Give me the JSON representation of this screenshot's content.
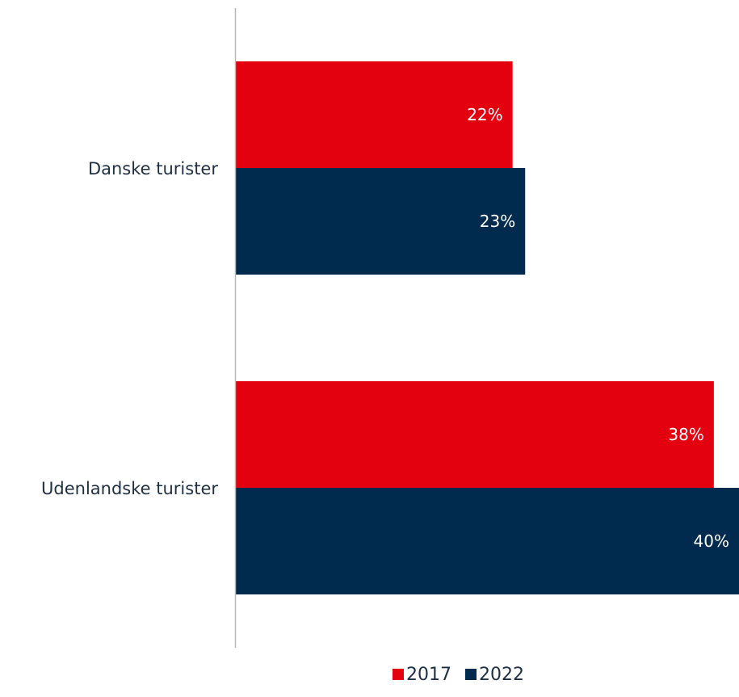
{
  "chart_data": {
    "type": "bar",
    "orientation": "horizontal",
    "categories": [
      "Danske turister",
      "Udenlandske turister"
    ],
    "series": [
      {
        "name": "2017",
        "values": [
          22,
          38
        ],
        "labels": [
          "22%",
          "38%"
        ],
        "color": "#e3000f"
      },
      {
        "name": "2022",
        "values": [
          23,
          40
        ],
        "labels": [
          "23%",
          "40%"
        ],
        "color": "#002a4e"
      }
    ],
    "xlim": [
      0,
      40
    ],
    "unit": "%",
    "grid": false,
    "legend": "bottom-center"
  }
}
